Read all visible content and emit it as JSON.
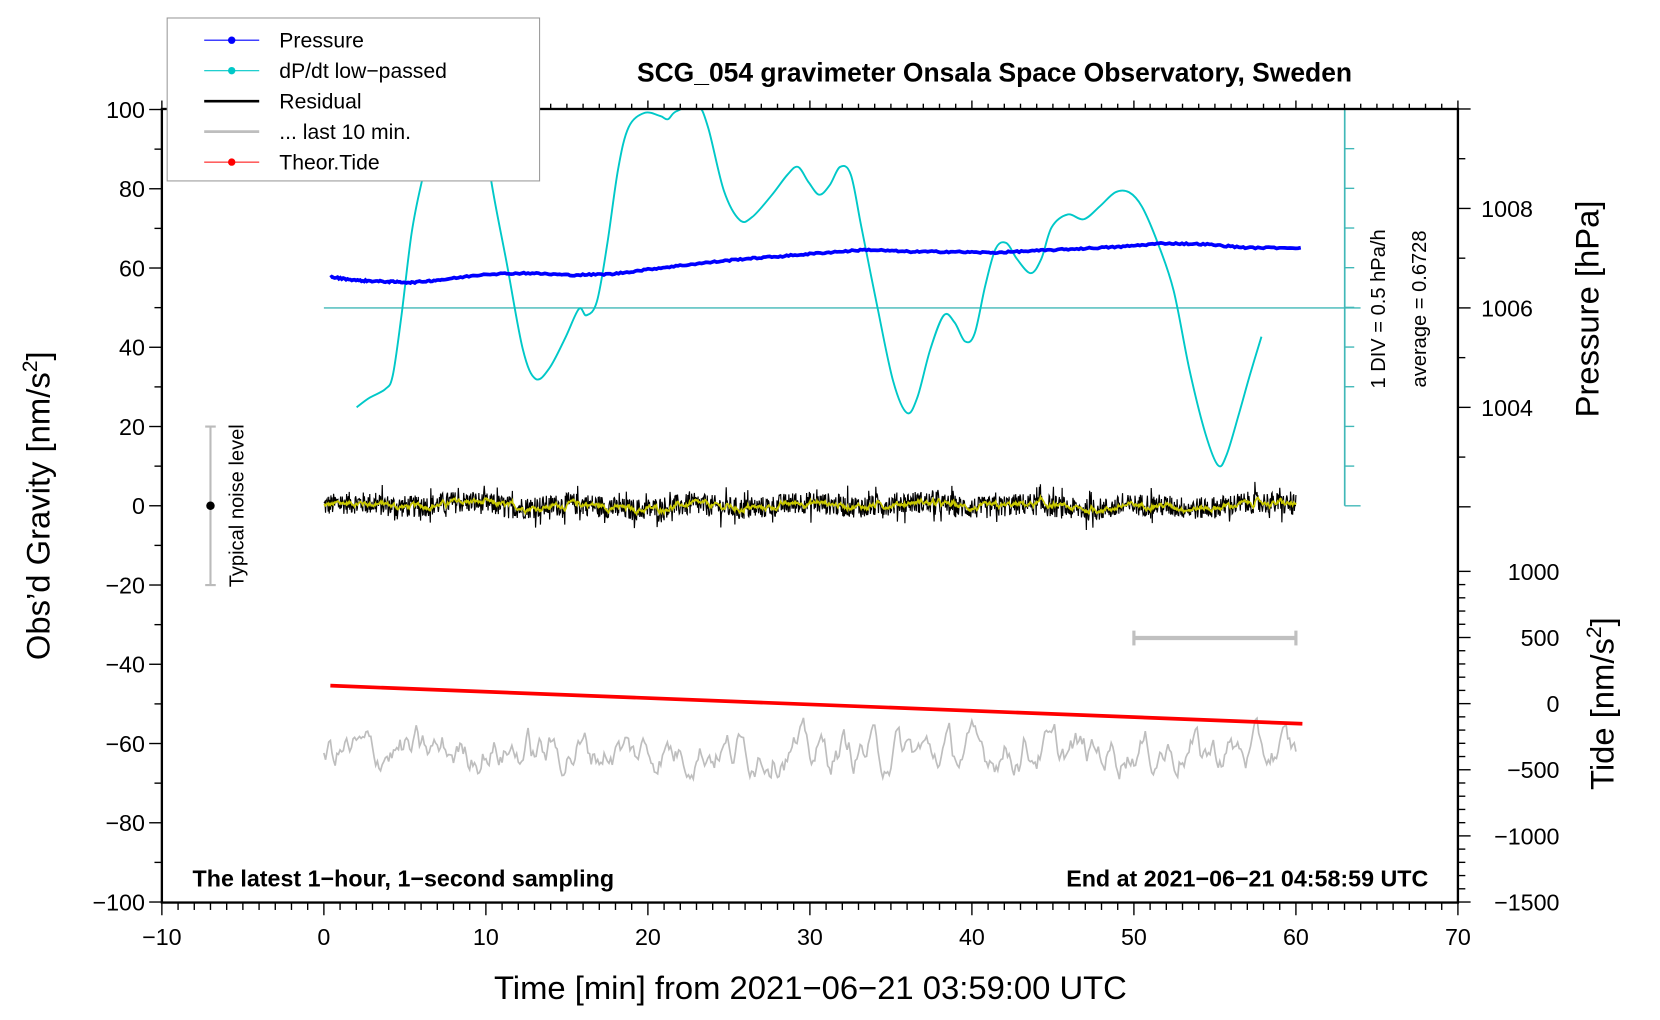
{
  "chart_data": {
    "type": "line",
    "title": "SCG_054 gravimeter Onsala Space Observatory, Sweden",
    "xlabel": "Time [min] from 2021−06−21 03:59:00 UTC",
    "xlim": [
      -10,
      70
    ],
    "xticks": [
      "−10",
      "0",
      "10",
      "20",
      "30",
      "40",
      "50",
      "60",
      "70"
    ],
    "xtick_values": [
      -10,
      0,
      10,
      20,
      30,
      40,
      50,
      60,
      70
    ],
    "left_axis": {
      "label": "Obs’d Gravity [nm/s",
      "label_sup": "2",
      "label_end": "]",
      "ylim": [
        -100,
        100
      ],
      "tick_values": [
        100,
        80,
        60,
        40,
        20,
        0,
        -20,
        -40,
        -60,
        -80,
        -100
      ],
      "ticks": [
        "100",
        "80",
        "60",
        "40",
        "20",
        "0",
        "−20",
        "−40",
        "−60",
        "−80",
        "−100"
      ]
    },
    "pressure_axis": {
      "label": "Pressure [hPa]",
      "ylim": [
        1002,
        1010
      ],
      "tick_values": [
        1008,
        1006,
        1004
      ],
      "ticks": [
        "1008",
        "1006",
        "1004"
      ]
    },
    "tide_axis": {
      "label": "Tide [nm/s",
      "label_sup": "2",
      "label_end": "]",
      "ylim": [
        -1500,
        1100
      ],
      "tick_values": [
        1000,
        500,
        0,
        -500,
        -1000,
        -1500
      ],
      "ticks": [
        "1000",
        "500",
        "0",
        "−500",
        "−1000",
        "−1500"
      ]
    },
    "dpdt_scale": {
      "div_label": "1 DIV = 0.5 hPa/h",
      "average_label": "average = 0.6728",
      "hpa_per_div": 0.5,
      "average": 0.6728,
      "divisions": 10
    },
    "legend": {
      "placement": "top-left",
      "entries": [
        {
          "label": "Pressure",
          "color": "#0000ff",
          "marker": true
        },
        {
          "label": "dP/dt low−passed",
          "color": "#00c8c8",
          "marker": true
        },
        {
          "label": "Residual",
          "color": "#000000",
          "marker": false
        },
        {
          "label": "... last 10 min.",
          "color": "#bebebe",
          "marker": false
        },
        {
          "label": "Theor.Tide",
          "color": "#ff0000",
          "marker": true
        }
      ]
    },
    "series": [
      {
        "name": "Pressure",
        "axis": "pressure",
        "unit": "hPa",
        "color": "#0000ff",
        "x": [
          0.4,
          2.16,
          3.79,
          5.42,
          7.38,
          10,
          12.6,
          15.2,
          17.8,
          20.4,
          23.05,
          25.7,
          28.3,
          30.9,
          33.5,
          36.1,
          38.7,
          41.3,
          44,
          46.6,
          49.2,
          51.8,
          54.4,
          57,
          60.3
        ],
        "y": [
          1006.62,
          1006.55,
          1006.53,
          1006.51,
          1006.57,
          1006.68,
          1006.7,
          1006.66,
          1006.68,
          1006.79,
          1006.89,
          1006.98,
          1007.04,
          1007.11,
          1007.17,
          1007.13,
          1007.13,
          1007.11,
          1007.15,
          1007.19,
          1007.23,
          1007.3,
          1007.28,
          1007.21,
          1007.21
        ]
      },
      {
        "name": "dP/dt low-passed",
        "axis": "dpdt",
        "unit": "hPa/h",
        "color": "#00c8c8",
        "x": [
          2.02,
          2.81,
          3.79,
          4.25,
          4.77,
          5.42,
          6.07,
          6.73,
          7.38,
          8.49,
          9.67,
          10.32,
          11.3,
          12.28,
          13.06,
          13.91,
          14.89,
          15.74,
          16.2,
          16.85,
          17.5,
          18.16,
          18.81,
          19.79,
          20.77,
          21.23,
          21.75,
          23.05,
          23.71,
          24.69,
          25.67,
          26.45,
          27.63,
          28.61,
          29.26,
          29.91,
          30.57,
          31.22,
          31.87,
          32.53,
          33.18,
          34.16,
          35.14,
          35.99,
          36.64,
          37.43,
          38.27,
          38.93,
          39.58,
          40.17,
          40.82,
          41.47,
          42.13,
          42.78,
          43.63,
          44.28,
          44.93,
          45.92,
          46.9,
          47.88,
          48.86,
          49.7,
          50.49,
          51.47,
          52.45,
          53.43,
          54.41,
          55.19,
          55.72,
          56.5,
          57.15,
          57.87
        ],
        "y": [
          -0.58,
          -0.46,
          -0.35,
          -0.18,
          0.55,
          1.62,
          2.29,
          2.82,
          3.35,
          3.75,
          3.35,
          2.29,
          1.22,
          0.15,
          -0.22,
          -0.09,
          0.29,
          0.66,
          0.58,
          0.75,
          1.49,
          2.42,
          2.95,
          3.13,
          3.09,
          3.05,
          3.15,
          3.22,
          2.95,
          2.15,
          1.78,
          1.82,
          2.09,
          2.35,
          2.45,
          2.26,
          2.1,
          2.22,
          2.45,
          2.35,
          1.69,
          0.69,
          -0.25,
          -0.65,
          -0.45,
          0.15,
          0.58,
          0.49,
          0.25,
          0.35,
          0.95,
          1.42,
          1.49,
          1.29,
          1.11,
          1.29,
          1.69,
          1.85,
          1.79,
          1.95,
          2.13,
          2.13,
          1.95,
          1.49,
          0.89,
          -0.11,
          -0.91,
          -1.31,
          -1.18,
          -0.65,
          -0.18,
          0.31
        ]
      },
      {
        "name": "Residual",
        "axis": "left",
        "unit": "nm/s2",
        "color": "#000000",
        "smoothed_color": "#c8c800",
        "x_range": [
          0,
          60
        ],
        "mean": 0,
        "noise_amplitude": 3.5
      },
      {
        "name": "... last 10 min.",
        "axis": "left",
        "unit": "nm/s2",
        "color": "#bebebe",
        "x_range": [
          0,
          60
        ],
        "offset": -62,
        "noise_amplitude": 3.5,
        "window_minutes": [
          50,
          60
        ]
      },
      {
        "name": "Theor.Tide",
        "axis": "tide",
        "unit": "nm/s2",
        "color": "#ff0000",
        "x": [
          0.4,
          60.4
        ],
        "y": [
          136,
          -152
        ]
      }
    ],
    "noise_bar": {
      "label": "Typical noise level",
      "x": -7,
      "center": 0,
      "range": [
        -20,
        20
      ]
    },
    "annotations": {
      "bottom_left": "The latest 1−hour, 1−second sampling",
      "bottom_right": "End at 2021−06−21 04:58:59 UTC"
    }
  }
}
